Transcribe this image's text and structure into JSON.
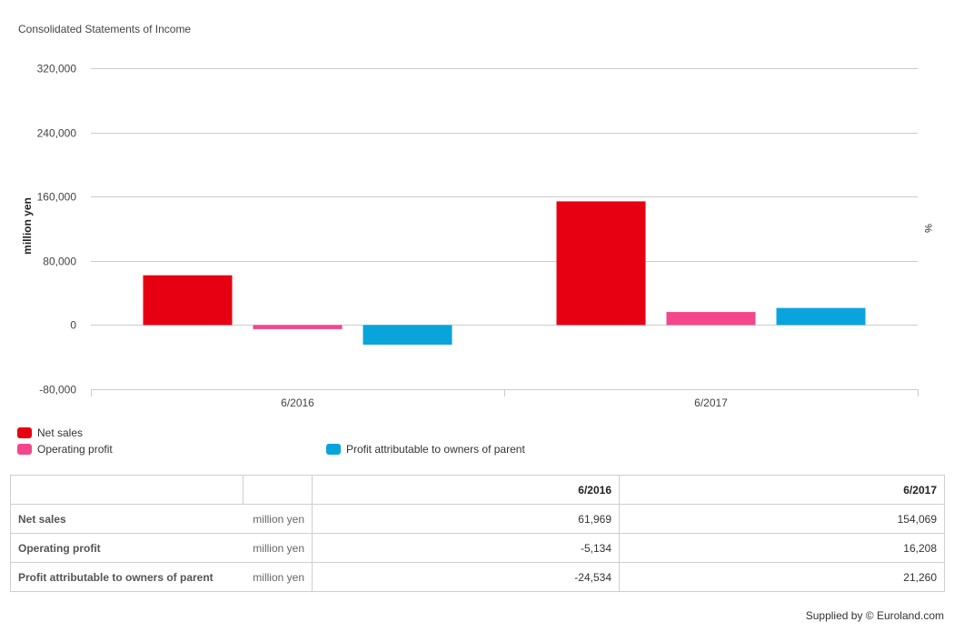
{
  "chart_data": {
    "type": "bar",
    "title": "Consolidated Statements of Income",
    "categories": [
      "6/2016",
      "6/2017"
    ],
    "series": [
      {
        "name": "Net sales",
        "values": [
          61969,
          154069
        ],
        "color": "#e60012"
      },
      {
        "name": "Operating profit",
        "values": [
          -5134,
          16208
        ],
        "color": "#f4468a"
      },
      {
        "name": "Profit attributable to owners of parent",
        "values": [
          -24534,
          21260
        ],
        "color": "#0aa4dc"
      }
    ],
    "ylabel": "million yen",
    "y2label": "%",
    "ylim": [
      -80000,
      320000
    ],
    "yticks": [
      -80000,
      0,
      80000,
      160000,
      240000,
      320000
    ],
    "ytick_labels": [
      "-80,000",
      "0",
      "80,000",
      "160,000",
      "240,000",
      "320,000"
    ],
    "grid": true,
    "legend_position": "bottom-left"
  },
  "table": {
    "headers": [
      "6/2016",
      "6/2017"
    ],
    "rows": [
      {
        "label": "Net sales",
        "unit": "million yen",
        "values": [
          "61,969",
          "154,069"
        ]
      },
      {
        "label": "Operating profit",
        "unit": "million yen",
        "values": [
          "-5,134",
          "16,208"
        ]
      },
      {
        "label": "Profit attributable to owners of parent",
        "unit": "million yen",
        "values": [
          "-24,534",
          "21,260"
        ]
      }
    ]
  },
  "footer": {
    "supplied": "Supplied by © Euroland.com"
  }
}
